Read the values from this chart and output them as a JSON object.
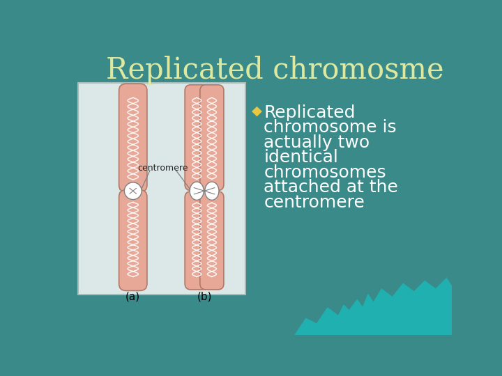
{
  "title": "Replicated chromosme",
  "title_color": "#dde8a0",
  "title_fontsize": 30,
  "bullet_marker": "◆",
  "bullet_color": "#e8c840",
  "bullet_text_lines": [
    "Replicated",
    "chromosome is",
    "actually two",
    "identical",
    "chromosomes",
    "attached at the",
    "centromere"
  ],
  "bullet_text_color": "white",
  "bullet_fontsize": 18,
  "bg_color": "#3a8a8a",
  "bg_color2": "#2a6a6a",
  "image_box_color": "#dce8e8",
  "image_box_edge": "#aabbbb",
  "chromo_color": "#e8a898",
  "chromo_edge": "#b07868",
  "label_a": "(a)",
  "label_b": "(b)",
  "centromere_label": "centromere",
  "teal_wave_color": "#20b0b0"
}
